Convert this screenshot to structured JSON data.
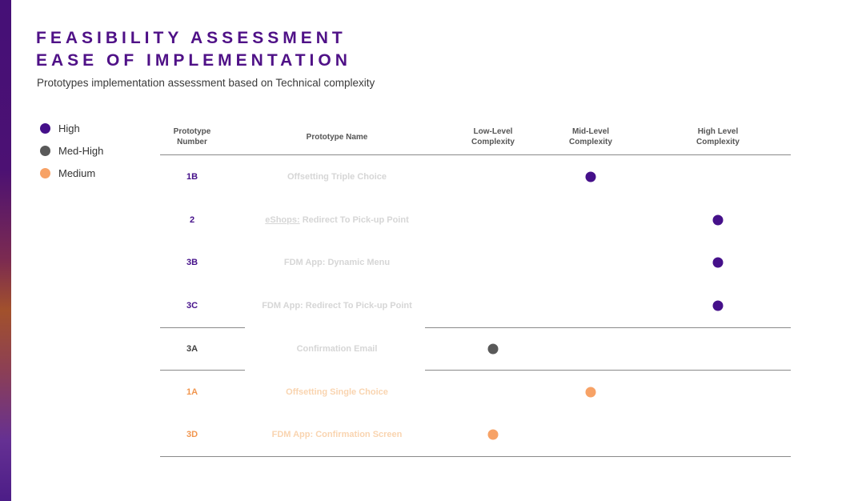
{
  "header": {
    "title_line1": "FEASIBILITY ASSESSMENT",
    "title_line2": "EASE OF IMPLEMENTATION",
    "subtitle": "Prototypes implementation assessment based on Technical complexity"
  },
  "legend": {
    "items": [
      {
        "label": "High",
        "color": "#45108a"
      },
      {
        "label": "Med-High",
        "color": "#595959"
      },
      {
        "label": "Medium",
        "color": "#f7a266"
      }
    ]
  },
  "table": {
    "columns": [
      "Prototype Number",
      "Prototype Name",
      "Low-Level Complexity",
      "Mid-Level Complexity",
      "High Level Complexity"
    ],
    "number_colors": {
      "High": "#45108a",
      "Med-High": "#3f3f3f",
      "Medium": "#f1964f"
    },
    "name_colors": {
      "default": "#d6d6d6",
      "medium": "#f9d4b0"
    },
    "rows": [
      {
        "number": "1B",
        "name": "Offsetting Triple Choice",
        "complexity": "Mid-Level Complexity",
        "rating": "High"
      },
      {
        "number": "2",
        "name": "eShops: Redirect To Pick-up Point",
        "link_prefix": "eShops:",
        "complexity": "High Level Complexity",
        "rating": "High"
      },
      {
        "number": "3B",
        "name": "FDM App: Dynamic Menu",
        "complexity": "High Level Complexity",
        "rating": "High"
      },
      {
        "number": "3C",
        "name": "FDM App: Redirect To Pick-up Point",
        "complexity": "High Level Complexity",
        "rating": "High"
      },
      {
        "number": "3A",
        "name": "Confirmation Email",
        "complexity": "Low-Level Complexity",
        "rating": "Med-High"
      },
      {
        "number": "1A",
        "name": "Offsetting Single Choice",
        "complexity": "Mid-Level Complexity",
        "rating": "Medium"
      },
      {
        "number": "3D",
        "name": "FDM App: Confirmation Screen",
        "complexity": "Low-Level Complexity",
        "rating": "Medium"
      }
    ]
  },
  "chart_data": {
    "type": "table",
    "title": "FEASIBILITY ASSESSMENT — EASE OF IMPLEMENTATION",
    "subtitle": "Prototypes implementation assessment based on Technical complexity",
    "columns": [
      "Prototype Number",
      "Prototype Name",
      "Low-Level Complexity",
      "Mid-Level Complexity",
      "High Level Complexity"
    ],
    "legend": [
      "High",
      "Med-High",
      "Medium"
    ],
    "rows": [
      {
        "prototype_number": "1B",
        "prototype_name": "Offsetting Triple Choice",
        "complexity": "Mid-Level Complexity",
        "rating": "High"
      },
      {
        "prototype_number": "2",
        "prototype_name": "eShops: Redirect To Pick-up Point",
        "complexity": "High Level Complexity",
        "rating": "High"
      },
      {
        "prototype_number": "3B",
        "prototype_name": "FDM App: Dynamic Menu",
        "complexity": "High Level Complexity",
        "rating": "High"
      },
      {
        "prototype_number": "3C",
        "prototype_name": "FDM App: Redirect To Pick-up Point",
        "complexity": "High Level Complexity",
        "rating": "High"
      },
      {
        "prototype_number": "3A",
        "prototype_name": "Confirmation Email",
        "complexity": "Low-Level Complexity",
        "rating": "Med-High"
      },
      {
        "prototype_number": "1A",
        "prototype_name": "Offsetting Single Choice",
        "complexity": "Mid-Level Complexity",
        "rating": "Medium"
      },
      {
        "prototype_number": "3D",
        "prototype_name": "FDM App: Confirmation Screen",
        "complexity": "Low-Level Complexity",
        "rating": "Medium"
      }
    ]
  }
}
